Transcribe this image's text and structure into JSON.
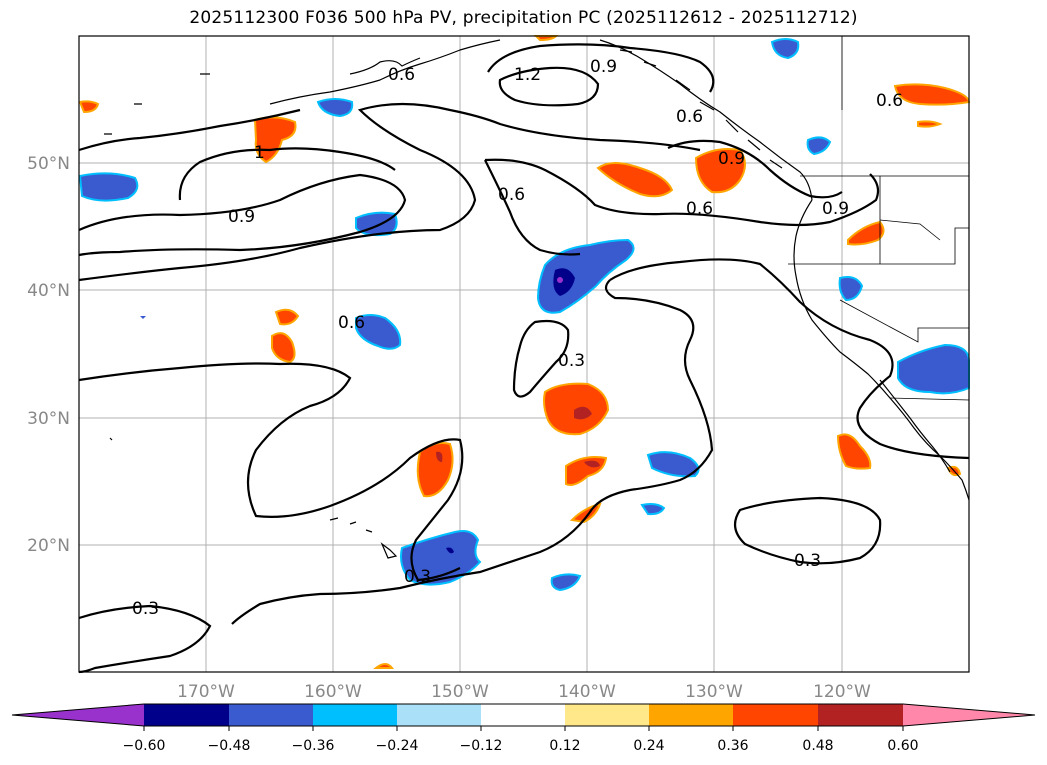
{
  "title": "2025112300 F036 500 hPa PV, precipitation PC (2025112612 - 2025112712)",
  "map": {
    "lon_range": [
      -180,
      -110
    ],
    "lat_range": [
      10,
      60
    ],
    "lat_ticks": [
      "50°N",
      "40°N",
      "30°N",
      "20°N"
    ],
    "lon_ticks": [
      "170°W",
      "160°W",
      "150°W",
      "140°W",
      "130°W",
      "120°W"
    ],
    "contour_labels": [
      "0.6",
      "1.2",
      "0.9",
      "0.6",
      "1",
      "0.9",
      "0.6",
      "0.9",
      "0.6",
      "0.9",
      "0.6",
      "0.6",
      "0.3",
      "0.3",
      "0.3",
      "0.3"
    ]
  },
  "colorbar": {
    "ticks": [
      "−0.60",
      "−0.48",
      "−0.36",
      "−0.24",
      "−0.12",
      "0.12",
      "0.24",
      "0.36",
      "0.48",
      "0.60"
    ],
    "colors": [
      "#9932cc",
      "#00008b",
      "#3a5bd0",
      "#00bfff",
      "#abe0f9",
      "#ffffff",
      "#ffe88a",
      "#ffa500",
      "#ff4500",
      "#b22222",
      "#ff88aa"
    ]
  }
}
